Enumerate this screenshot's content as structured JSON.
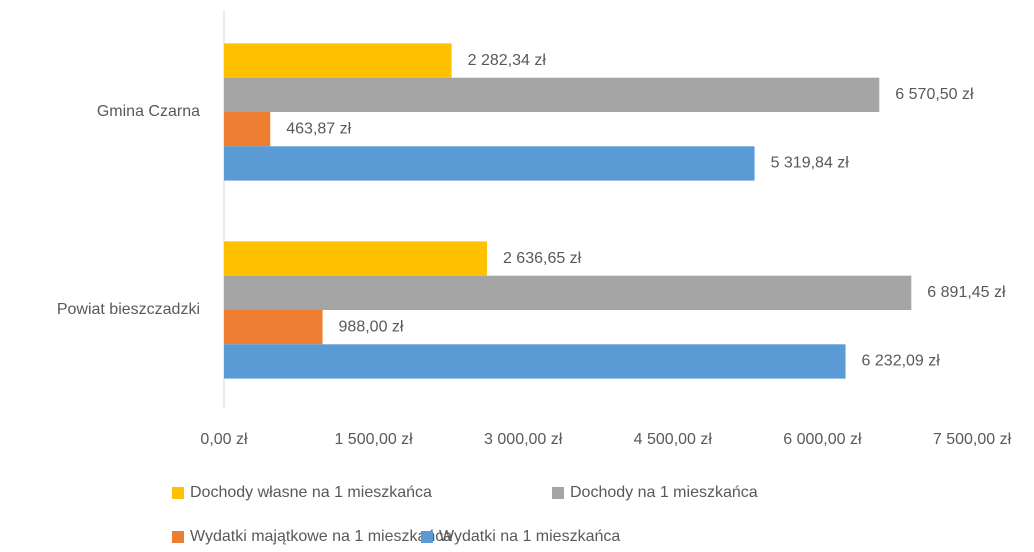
{
  "chart_data": {
    "type": "bar",
    "orientation": "horizontal",
    "categories": [
      "Gmina Czarna",
      "Powiat bieszczadzki"
    ],
    "series": [
      {
        "name": "Dochody własne na 1 mieszkańca",
        "color": "#FFC000",
        "values": [
          2282.34,
          2636.65
        ],
        "value_labels": [
          "2 282,34 zł",
          "2 636,65 zł"
        ]
      },
      {
        "name": "Dochody na 1 mieszkańca",
        "color": "#A5A5A5",
        "values": [
          6570.5,
          6891.45
        ],
        "value_labels": [
          "6 570,50 zł",
          "6 891,45 zł"
        ]
      },
      {
        "name": "Wydatki majątkowe na 1 mieszkańca",
        "color": "#ED7D31",
        "values": [
          463.87,
          988.0
        ],
        "value_labels": [
          "463,87 zł",
          "988,00 zł"
        ]
      },
      {
        "name": "Wydatki na 1 mieszkańca",
        "color": "#5B9BD5",
        "values": [
          5319.84,
          6232.09
        ],
        "value_labels": [
          "5 319,84 zł",
          "6 232,09 zł"
        ]
      }
    ],
    "xlim": [
      0,
      7500
    ],
    "xticks": [
      {
        "value": 0,
        "label": "0,00 zł"
      },
      {
        "value": 1500,
        "label": "1 500,00 zł"
      },
      {
        "value": 3000,
        "label": "3 000,00 zł"
      },
      {
        "value": 4500,
        "label": "4 500,00 zł"
      },
      {
        "value": 6000,
        "label": "6 000,00 zł"
      },
      {
        "value": 7500,
        "label": "7 500,00 zł"
      }
    ],
    "legend": "bottom"
  }
}
